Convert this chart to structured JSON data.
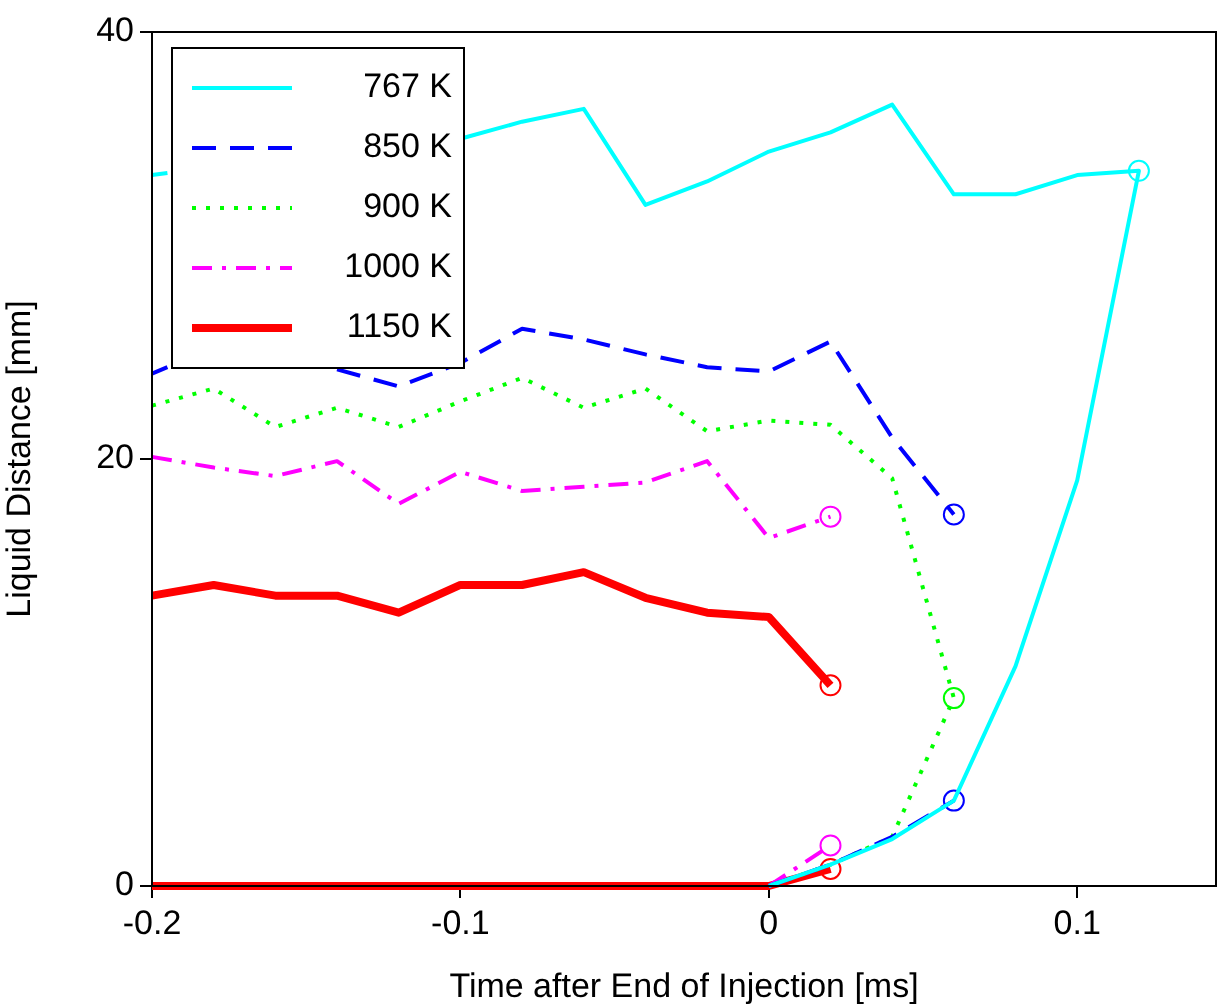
{
  "chart_data": {
    "type": "line",
    "xlabel": "Time after End of Injection [ms]",
    "ylabel": "Liquid Distance [mm]",
    "xlim": [
      -0.2,
      0.145
    ],
    "ylim": [
      0,
      40
    ],
    "xticks": [
      -0.2,
      -0.1,
      0,
      0.1
    ],
    "yticks": [
      0,
      20,
      40
    ],
    "grid": false,
    "legend": "top left",
    "marker": "none",
    "series": [
      {
        "name": "767 K",
        "color": "#00ffff",
        "line_style": "solid",
        "x": [
          -0.2,
          -0.195,
          -0.18,
          -0.16,
          -0.14,
          -0.12,
          -0.1,
          -0.08,
          -0.06,
          -0.04,
          -0.02,
          0,
          0.02,
          0.04,
          0.06,
          0.08,
          0.1,
          0.12,
          0.1,
          0.08,
          0.06,
          0.04,
          0.02,
          0
        ],
        "values": [
          33.3,
          33.4,
          null,
          null,
          null,
          null,
          35.0,
          35.8,
          36.4,
          31.9,
          33.0,
          34.4,
          35.3,
          36.6,
          32.4,
          32.4,
          33.3,
          33.5,
          19.0,
          10.3,
          4.0,
          2.2,
          1.0,
          0
        ]
      },
      {
        "name": "850 K",
        "color": "#0000ff",
        "line_style": "dashed",
        "x": [
          -0.2,
          -0.195,
          -0.18,
          -0.16,
          -0.14,
          -0.12,
          -0.1,
          -0.08,
          -0.06,
          -0.04,
          -0.02,
          0,
          0.02,
          0.04,
          0.06
        ],
        "values": [
          24.0,
          24.3,
          null,
          null,
          24.2,
          23.4,
          24.5,
          26.1,
          25.6,
          24.9,
          24.3,
          24.1,
          25.5,
          21.0,
          17.4
        ]
      },
      {
        "color": "#0000ff",
        "line_style": "dashed",
        "x": [
          0,
          0.02,
          0.04,
          0.06
        ],
        "values": [
          0,
          1.0,
          2.3,
          4.0
        ]
      },
      {
        "name": "900 K",
        "color": "#00ff00",
        "line_style": "dotted",
        "x": [
          -0.2,
          -0.18,
          -0.16,
          -0.14,
          -0.12,
          -0.1,
          -0.08,
          -0.06,
          -0.04,
          -0.02,
          0,
          0.02,
          0.04,
          0.06,
          0.04,
          0.02,
          0
        ],
        "values": [
          22.5,
          23.3,
          21.5,
          22.4,
          21.5,
          22.7,
          23.8,
          22.4,
          23.3,
          21.3,
          21.8,
          21.6,
          19.1,
          8.8,
          2.3,
          1.0,
          0
        ]
      },
      {
        "name": "1000 K",
        "color": "#ff00ff",
        "line_style": "dashdot",
        "x": [
          -0.2,
          -0.18,
          -0.16,
          -0.14,
          -0.12,
          -0.1,
          -0.08,
          -0.06,
          -0.04,
          -0.02,
          0,
          0.02
        ],
        "values": [
          20.1,
          19.6,
          19.2,
          19.9,
          17.9,
          19.4,
          18.5,
          18.7,
          18.9,
          19.9,
          16.3,
          17.3
        ]
      },
      {
        "color": "#ff00ff",
        "line_style": "dashdot",
        "x": [
          0,
          0.02
        ],
        "values": [
          0,
          1.9
        ]
      },
      {
        "name": "1150 K",
        "color": "#ff0000",
        "line_style": "solid",
        "x": [
          -0.2,
          -0.18,
          -0.16,
          -0.14,
          -0.12,
          -0.1,
          -0.08,
          -0.06,
          -0.04,
          -0.02,
          0,
          0.02
        ],
        "values": [
          13.6,
          14.1,
          13.6,
          13.6,
          12.8,
          14.1,
          14.1,
          14.7,
          13.5,
          12.8,
          12.6,
          9.4
        ]
      },
      {
        "color": "#ff0000",
        "line_style": "solid",
        "x": [
          -0.2,
          0,
          0.02
        ],
        "values": [
          0,
          0,
          0.8
        ]
      },
      {
        "type": "scatter",
        "marker": "circle",
        "color": "#00ffff",
        "x": [
          0.12
        ],
        "values": [
          33.5
        ]
      },
      {
        "type": "scatter",
        "marker": "circle",
        "color": "#0000ff",
        "x": [
          0.06,
          0.06
        ],
        "values": [
          17.4,
          4.0
        ]
      },
      {
        "type": "scatter",
        "marker": "circle",
        "color": "#00ff00",
        "x": [
          0.06
        ],
        "values": [
          8.8
        ]
      },
      {
        "type": "scatter",
        "marker": "circle",
        "color": "#ff00ff",
        "x": [
          0.02,
          0.02
        ],
        "values": [
          17.3,
          1.9
        ]
      },
      {
        "type": "scatter",
        "marker": "circle",
        "color": "#ff0000",
        "x": [
          0.02,
          0.02
        ],
        "values": [
          9.4,
          0.8
        ]
      }
    ]
  }
}
